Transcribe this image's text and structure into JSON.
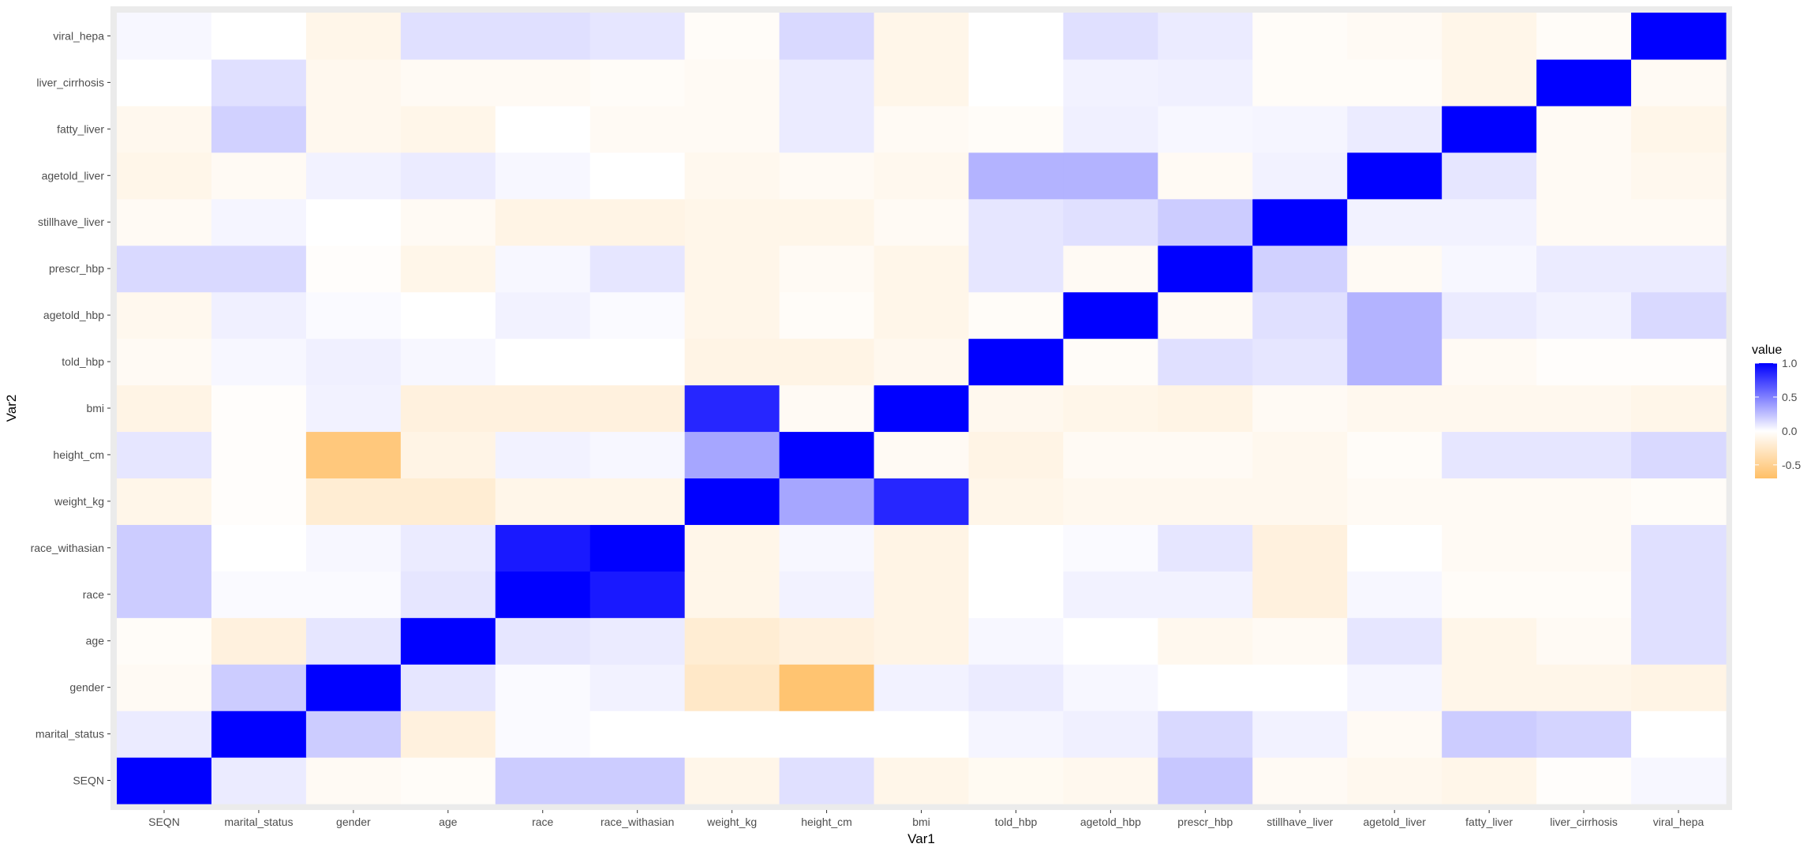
{
  "chart_data": {
    "type": "heatmap",
    "xlabel": "Var1",
    "ylabel": "Var2",
    "x_categories": [
      "SEQN",
      "marital_status",
      "gender",
      "age",
      "race",
      "race_withasian",
      "weight_kg",
      "height_cm",
      "bmi",
      "told_hbp",
      "agetold_hbp",
      "prescr_hbp",
      "stillhave_liver",
      "agetold_liver",
      "fatty_liver",
      "liver_cirrhosis",
      "viral_hepa"
    ],
    "y_categories": [
      "SEQN",
      "marital_status",
      "gender",
      "age",
      "race",
      "race_withasian",
      "weight_kg",
      "height_cm",
      "bmi",
      "told_hbp",
      "agetold_hbp",
      "prescr_hbp",
      "stillhave_liver",
      "agetold_liver",
      "fatty_liver",
      "liver_cirrhosis",
      "viral_hepa"
    ],
    "values": [
      [
        1.0,
        0.08,
        -0.05,
        -0.03,
        0.2,
        0.2,
        -0.1,
        0.12,
        -0.1,
        -0.06,
        -0.08,
        0.22,
        -0.05,
        -0.08,
        -0.1,
        -0.02,
        0.03
      ],
      [
        0.08,
        1.0,
        0.2,
        -0.15,
        0.02,
        0.0,
        0.0,
        0.0,
        0.0,
        0.04,
        0.06,
        0.15,
        0.05,
        -0.05,
        0.2,
        0.17,
        0.0
      ],
      [
        -0.05,
        0.2,
        1.0,
        0.1,
        0.02,
        0.05,
        -0.25,
        -0.65,
        0.05,
        0.08,
        0.03,
        0.0,
        0.0,
        0.04,
        -0.1,
        -0.1,
        -0.12
      ],
      [
        -0.03,
        -0.15,
        0.1,
        1.0,
        0.1,
        0.08,
        -0.2,
        -0.15,
        -0.12,
        0.03,
        0.0,
        -0.08,
        -0.05,
        0.1,
        -0.1,
        -0.05,
        0.12
      ],
      [
        0.2,
        0.02,
        0.02,
        0.1,
        1.0,
        0.9,
        -0.1,
        0.05,
        -0.12,
        0.0,
        0.05,
        0.05,
        -0.15,
        0.03,
        -0.03,
        -0.03,
        0.12
      ],
      [
        0.2,
        0.0,
        0.03,
        0.08,
        0.9,
        1.0,
        -0.1,
        0.03,
        -0.12,
        0.0,
        0.02,
        0.1,
        -0.15,
        0.0,
        -0.05,
        -0.05,
        0.12
      ],
      [
        -0.1,
        -0.02,
        -0.2,
        -0.2,
        -0.1,
        -0.1,
        1.0,
        0.35,
        0.85,
        -0.1,
        -0.08,
        -0.08,
        -0.08,
        -0.05,
        -0.05,
        -0.05,
        -0.03
      ],
      [
        0.1,
        -0.02,
        -0.6,
        -0.12,
        0.05,
        0.03,
        0.35,
        1.0,
        -0.05,
        -0.12,
        -0.05,
        -0.05,
        -0.08,
        -0.03,
        0.1,
        0.1,
        0.15
      ],
      [
        -0.12,
        -0.02,
        0.05,
        -0.15,
        -0.15,
        -0.15,
        0.85,
        -0.05,
        1.0,
        -0.08,
        -0.1,
        -0.12,
        -0.05,
        -0.08,
        -0.08,
        -0.08,
        -0.1
      ],
      [
        -0.05,
        0.03,
        0.06,
        0.03,
        0.0,
        0.0,
        -0.12,
        -0.12,
        -0.08,
        1.0,
        -0.03,
        0.12,
        0.1,
        0.3,
        -0.05,
        -0.02,
        -0.02
      ],
      [
        -0.08,
        0.06,
        0.02,
        0.0,
        0.05,
        0.02,
        -0.1,
        -0.03,
        -0.1,
        -0.03,
        1.0,
        -0.05,
        0.12,
        0.3,
        0.08,
        0.05,
        0.15
      ],
      [
        0.15,
        0.15,
        -0.02,
        -0.1,
        0.03,
        0.1,
        -0.1,
        -0.05,
        -0.1,
        0.1,
        -0.05,
        1.0,
        0.18,
        -0.05,
        0.03,
        0.08,
        0.08
      ],
      [
        -0.05,
        0.04,
        0.0,
        -0.05,
        -0.12,
        -0.12,
        -0.1,
        -0.1,
        -0.05,
        0.1,
        0.12,
        0.2,
        1.0,
        0.05,
        0.05,
        -0.05,
        -0.05
      ],
      [
        -0.1,
        -0.05,
        0.05,
        0.08,
        0.03,
        0.0,
        -0.08,
        -0.05,
        -0.08,
        0.3,
        0.3,
        -0.05,
        0.05,
        1.0,
        0.1,
        -0.05,
        -0.08
      ],
      [
        -0.08,
        0.18,
        -0.08,
        -0.1,
        0.0,
        -0.05,
        -0.05,
        0.08,
        -0.05,
        -0.03,
        0.06,
        0.03,
        0.04,
        0.08,
        1.0,
        -0.05,
        -0.1
      ],
      [
        0.0,
        0.12,
        -0.08,
        -0.05,
        -0.05,
        -0.03,
        -0.05,
        0.08,
        -0.1,
        0.0,
        0.05,
        0.06,
        -0.03,
        -0.03,
        -0.1,
        1.0,
        -0.05
      ],
      [
        0.03,
        0.0,
        -0.1,
        0.12,
        0.12,
        0.1,
        -0.03,
        0.15,
        -0.1,
        0.0,
        0.12,
        0.08,
        -0.03,
        -0.05,
        -0.1,
        -0.03,
        1.0
      ]
    ],
    "legend": {
      "title": "value",
      "ticks": [
        "1.0",
        "0.5",
        "0.0",
        "-0.5"
      ],
      "tick_values": [
        1.0,
        0.5,
        0.0,
        -0.5
      ],
      "range": [
        -0.7,
        1.0
      ],
      "colors": {
        "high": "#0000ff",
        "mid": "#ffffff",
        "low": "#ffbf66"
      },
      "placement": "right"
    },
    "panel_background": "#ebebeb",
    "grid": true
  }
}
